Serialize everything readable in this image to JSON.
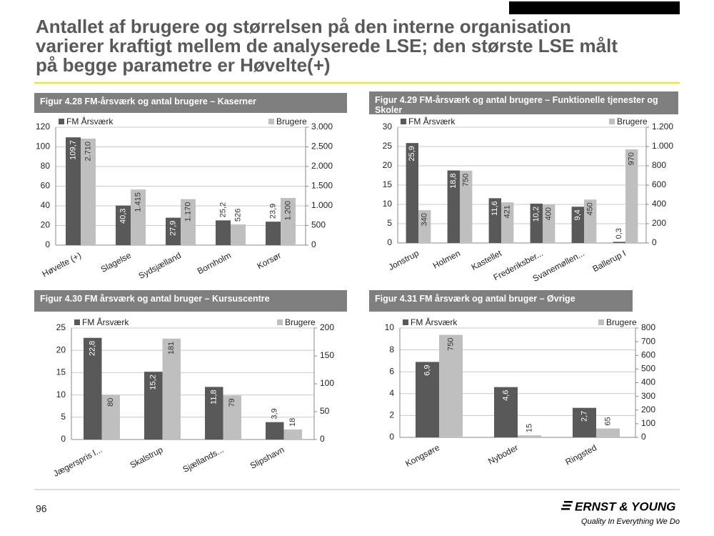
{
  "page": {
    "title": [
      "Antallet af brugere og størrelsen på den interne organisation",
      "varierer kraftigt mellem de analyserede LSE; den største LSE målt",
      "på begge parametre er Høvelte(+)"
    ],
    "page_number": "96",
    "logo": "ERNST & YOUNG",
    "tagline": "Quality In Everything We Do"
  },
  "chart_data": [
    {
      "type": "bar",
      "title": "Figur 4.28 FM-årsværk og antal brugere – Kaserner",
      "categories": [
        "Høvelte (+)",
        "Slagelse",
        "Sydsjælland",
        "Bornholm",
        "Korsør"
      ],
      "series": [
        {
          "name": "FM Årsværk",
          "color": "#595959",
          "values": [
            109.7,
            40.3,
            27.9,
            25.2,
            23.9
          ],
          "value_labels": [
            "109,7",
            "40,3",
            "27,9",
            "25,2",
            "23,9"
          ]
        },
        {
          "name": "Brugere",
          "color": "#bfbfbf",
          "axis": "y2",
          "values": [
            2710,
            1415,
            1170,
            526,
            1200
          ],
          "value_labels": [
            "2.710",
            "1.415",
            "1.170",
            "526",
            "1.200"
          ]
        }
      ],
      "ylim": [
        0,
        120
      ],
      "yticks": [
        0,
        20,
        40,
        60,
        80,
        100,
        120
      ],
      "y2lim": [
        0,
        3000
      ],
      "y2ticks": [
        0,
        500,
        {
          "value": 1000,
          "label": "1.000"
        },
        {
          "value": 1500,
          "label": "1.500"
        },
        {
          "value": 2000,
          "label": "2.000"
        },
        {
          "value": 2500,
          "label": "2.500"
        },
        {
          "value": 3000,
          "label": "3.000"
        }
      ],
      "grid": true
    },
    {
      "type": "bar",
      "title": "Figur 4.29 FM-årsværk og antal brugere – Funktionelle tjenester og Skoler",
      "categories": [
        "Jonstrup",
        "Holmen",
        "Kastellet",
        "Frederiksber...",
        "Svanemøllen...",
        "Ballerup I"
      ],
      "series": [
        {
          "name": "FM Årsværk",
          "color": "#595959",
          "values": [
            25.9,
            18.8,
            11.6,
            10.2,
            9.4,
            0.3
          ],
          "value_labels": [
            "25,9",
            "18,8",
            "11,6",
            "10,2",
            "9,4",
            "0,3"
          ]
        },
        {
          "name": "Brugere",
          "color": "#bfbfbf",
          "axis": "y2",
          "values": [
            340,
            750,
            421,
            400,
            450,
            970
          ]
        }
      ],
      "ylim": [
        0,
        30
      ],
      "yticks": [
        0,
        5,
        10,
        15,
        20,
        25,
        30
      ],
      "y2lim": [
        0,
        1200
      ],
      "y2ticks": [
        0,
        200,
        400,
        600,
        800,
        {
          "value": 1000,
          "label": "1.000"
        },
        {
          "value": 1200,
          "label": "1.200"
        }
      ],
      "grid": true
    },
    {
      "type": "bar",
      "title": "Figur 4.30 FM årsværk og antal bruger –  Kursuscentre",
      "categories": [
        "Jægerspris l...",
        "Skalstrup",
        "Sjællands...",
        "Slipshavn"
      ],
      "series": [
        {
          "name": "FM Årsværk",
          "color": "#595959",
          "values": [
            22.8,
            15.2,
            11.8,
            3.9
          ],
          "value_labels": [
            "22,8",
            "15,2",
            "11,8",
            "3,9"
          ]
        },
        {
          "name": "Brugere",
          "color": "#bfbfbf",
          "axis": "y2",
          "values": [
            80,
            181,
            79,
            18
          ]
        }
      ],
      "ylim": [
        0,
        25
      ],
      "yticks": [
        0,
        5,
        10,
        15,
        20,
        25
      ],
      "y2lim": [
        0,
        200
      ],
      "y2ticks": [
        0,
        50,
        100,
        150,
        200
      ],
      "grid": true
    },
    {
      "type": "bar",
      "title": "Figur 4.31 FM årsværk og antal bruger – Øvrige",
      "categories": [
        "Kongsøre",
        "Nyboder",
        "Ringsted"
      ],
      "series": [
        {
          "name": "FM Årsværk",
          "color": "#595959",
          "values": [
            6.9,
            4.6,
            2.7
          ],
          "value_labels": [
            "6,9",
            "4,6",
            "2,7"
          ]
        },
        {
          "name": "Brugere",
          "color": "#bfbfbf",
          "axis": "y2",
          "values": [
            750,
            15,
            65
          ]
        }
      ],
      "ylim": [
        0,
        10
      ],
      "yticks": [
        0,
        2,
        4,
        6,
        8,
        10
      ],
      "y2lim": [
        0,
        800
      ],
      "y2ticks": [
        0,
        100,
        200,
        300,
        400,
        500,
        600,
        700,
        800
      ],
      "grid": true
    }
  ]
}
